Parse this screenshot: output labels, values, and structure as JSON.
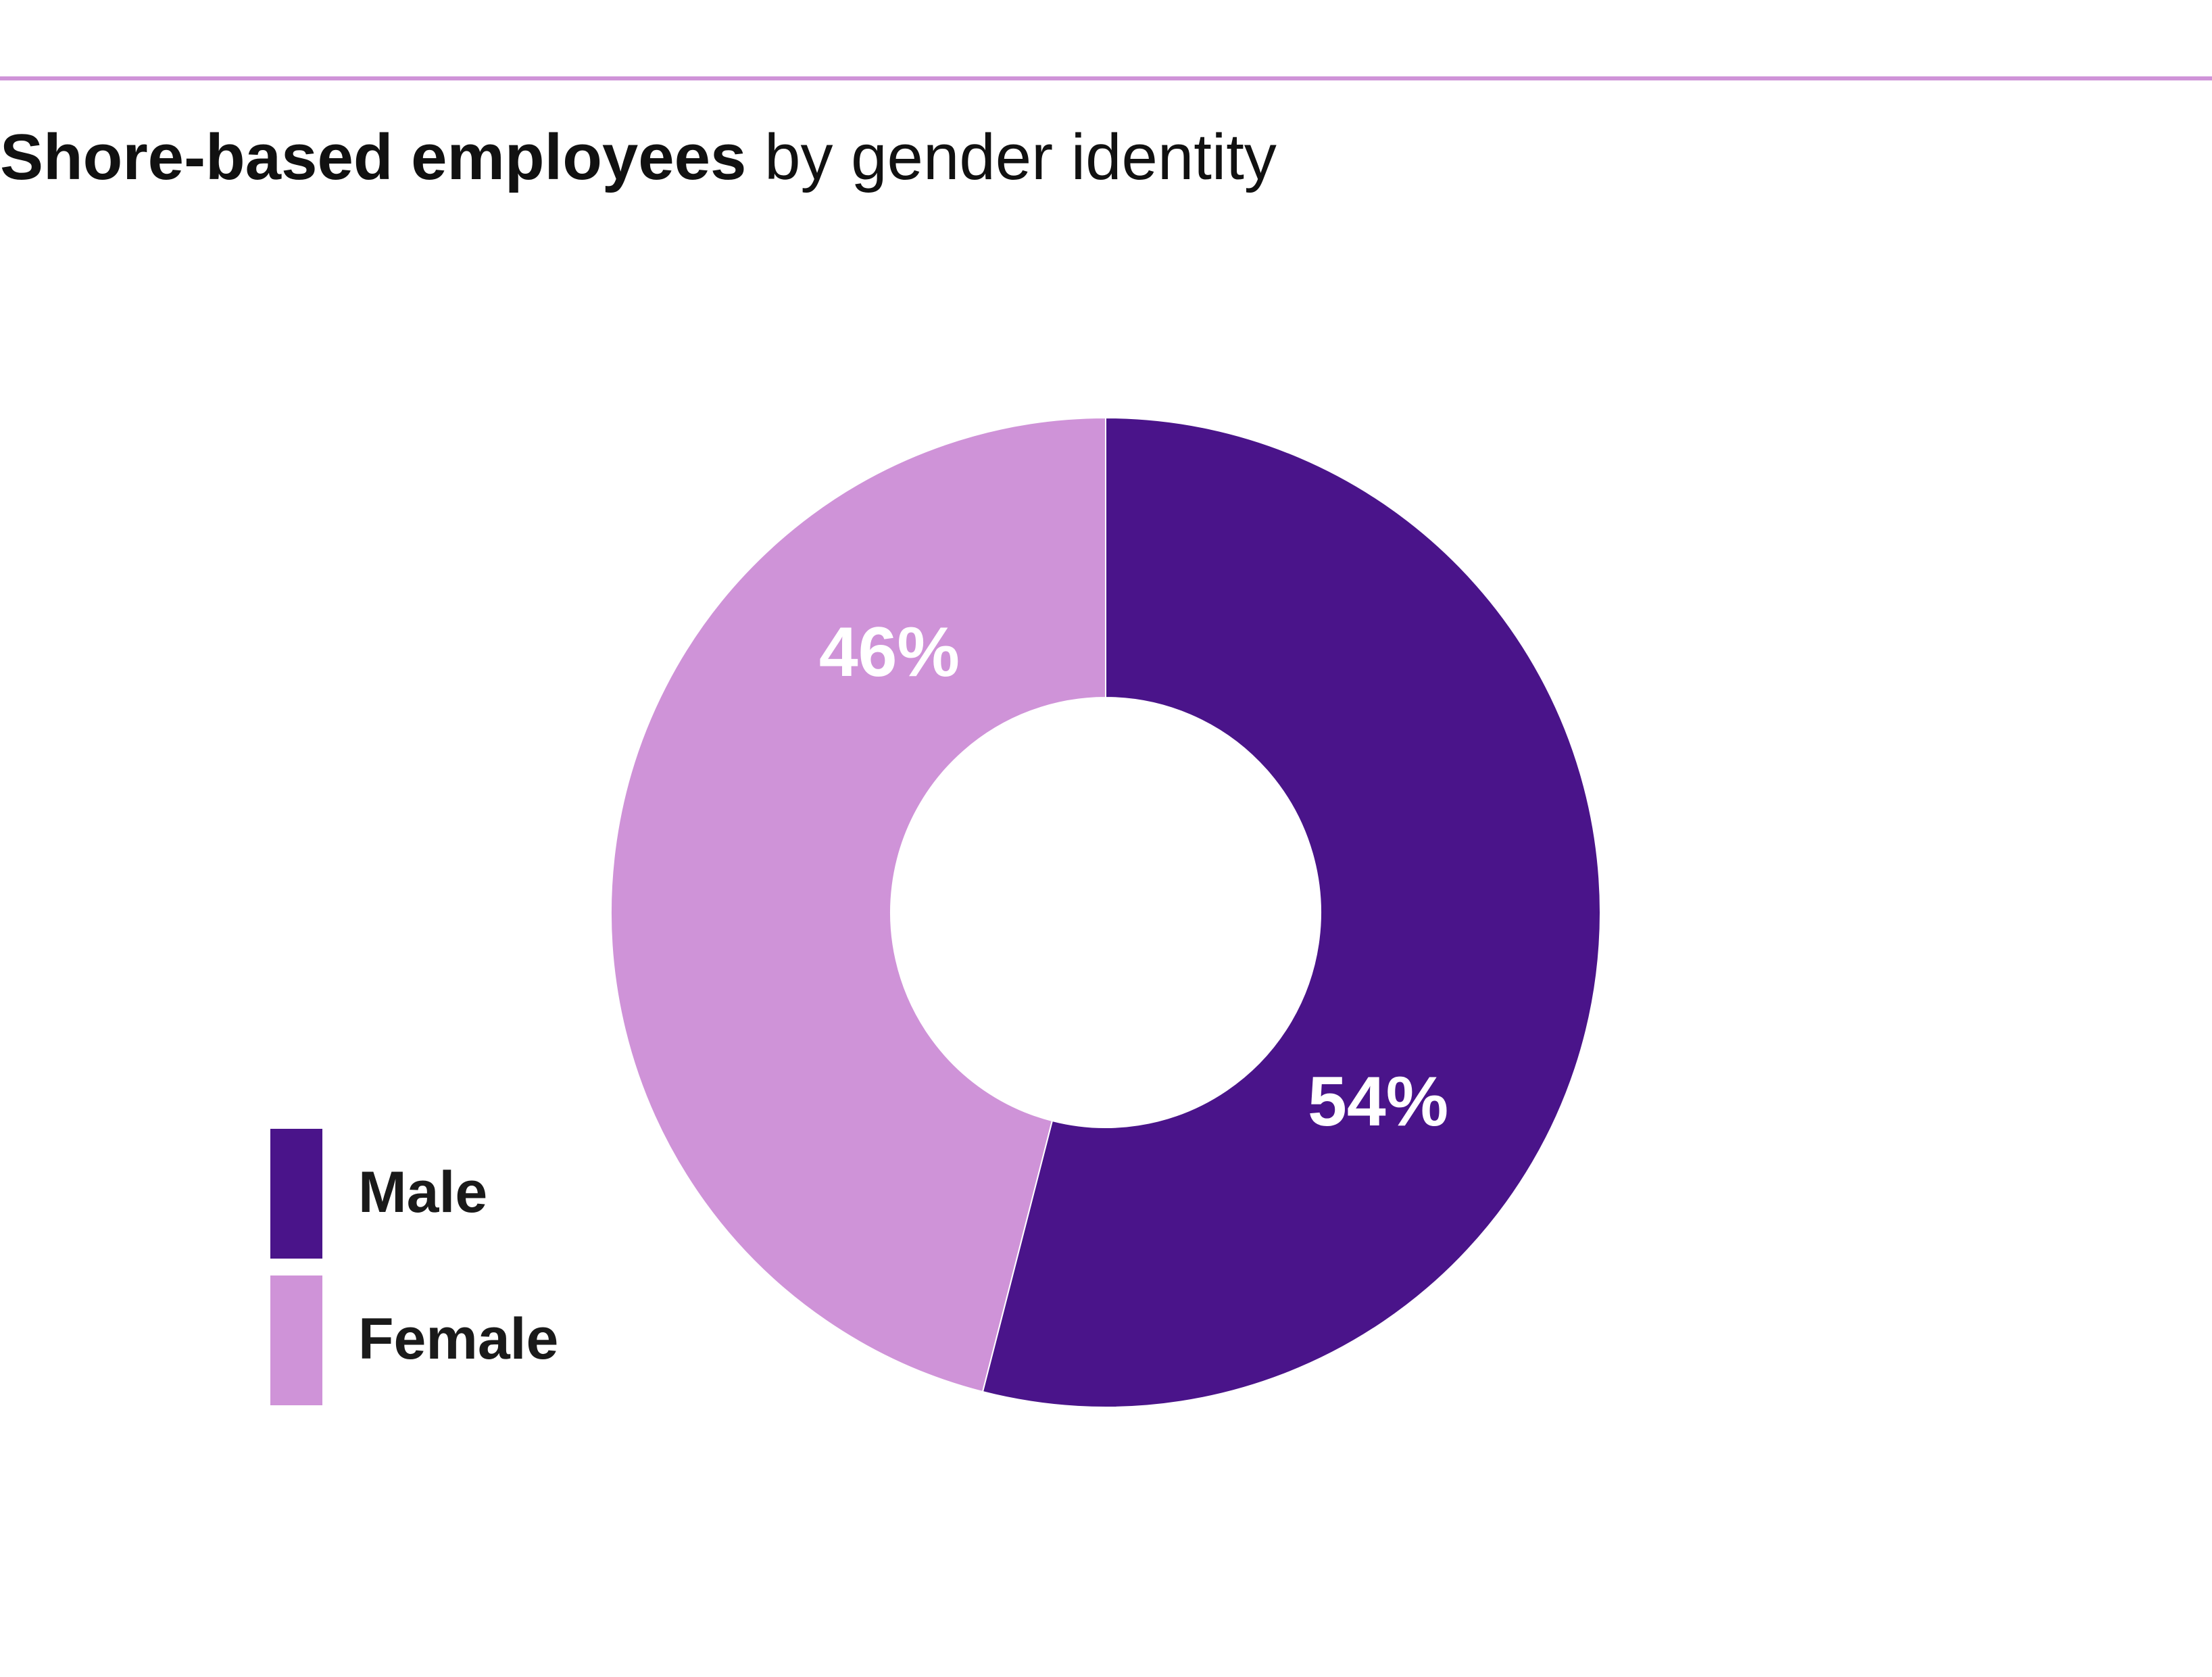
{
  "title": {
    "bold": "Shore-based employees",
    "regular": "by gender identity"
  },
  "colors": {
    "rule": "#cf93d8",
    "male": "#4a148a",
    "female": "#cf93d8",
    "label_text": "#ffffff"
  },
  "chart_data": {
    "type": "pie",
    "variant": "donut",
    "title": "Shore-based employees by gender identity",
    "categories": [
      "Male",
      "Female"
    ],
    "values": [
      54,
      46
    ],
    "labels": [
      "54%",
      "46%"
    ],
    "unit": "%",
    "start_angle": "12 o'clock",
    "direction": "clockwise",
    "legend": {
      "placement": "bottom-left",
      "entries": [
        "Male",
        "Female"
      ]
    }
  }
}
